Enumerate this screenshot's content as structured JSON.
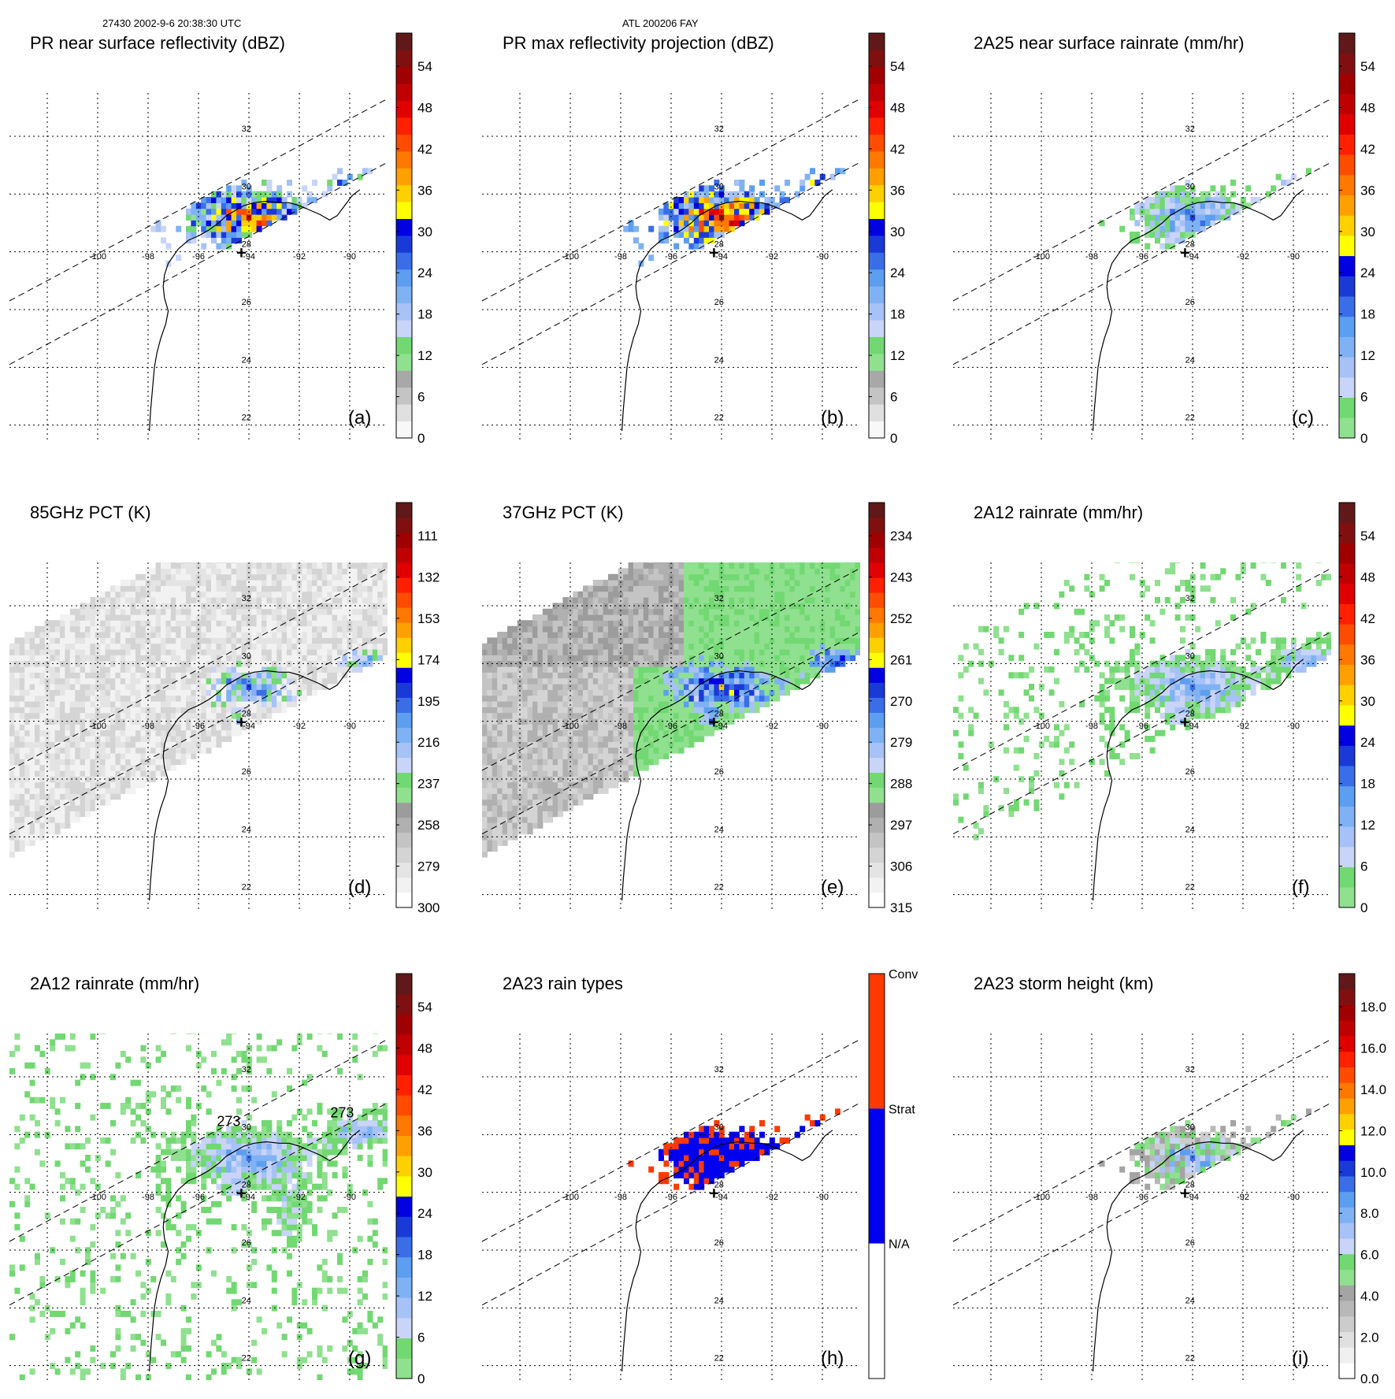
{
  "header": {
    "left": "27430 2002-9-6 20:38:30 UTC",
    "center": "ATL 200206 FAY"
  },
  "chart_data": {
    "type": "heatmap",
    "description_panels": 9,
    "map": {
      "lat_labels": [
        "32",
        "30",
        "28",
        "26",
        "24",
        "22"
      ],
      "lon_labels": [
        "-100",
        "-98",
        "-96",
        "-94",
        "-92",
        "-90"
      ],
      "lat_range": [
        21.5,
        33.5
      ],
      "lon_range": [
        -103.5,
        -88.5
      ],
      "marker": "+"
    },
    "panels": [
      {
        "id": "a",
        "letter": "(a)",
        "title": "PR near surface reflectivity (dBZ)",
        "field": "reflectivity",
        "swath": "pr",
        "colorbar": {
          "kind": "reflectivity",
          "tick_labels": [
            "0",
            "6",
            "12",
            "18",
            "24",
            "30",
            "36",
            "42",
            "48",
            "54"
          ]
        }
      },
      {
        "id": "b",
        "letter": "(b)",
        "title": "PR max reflectivity projection (dBZ)",
        "field": "reflectivity_max",
        "swath": "pr",
        "colorbar": {
          "kind": "reflectivity",
          "tick_labels": [
            "0",
            "6",
            "12",
            "18",
            "24",
            "30",
            "36",
            "42",
            "48",
            "54"
          ]
        }
      },
      {
        "id": "c",
        "letter": "(c)",
        "title": "2A25 near surface rainrate (mm/hr)",
        "field": "rain",
        "swath": "pr",
        "colorbar": {
          "kind": "rain",
          "tick_labels": [
            "0",
            "6",
            "12",
            "18",
            "24",
            "30",
            "36",
            "42",
            "48",
            "54"
          ]
        }
      },
      {
        "id": "d",
        "letter": "(d)",
        "title": "85GHz PCT (K)",
        "field": "pct85",
        "swath": "tmi",
        "colorbar": {
          "kind": "pct",
          "tick_labels": [
            "300",
            "279",
            "258",
            "237",
            "216",
            "195",
            "174",
            "153",
            "132",
            "111"
          ]
        }
      },
      {
        "id": "e",
        "letter": "(e)",
        "title": "37GHz PCT (K)",
        "field": "pct37",
        "swath": "tmi",
        "colorbar": {
          "kind": "pct",
          "tick_labels": [
            "315",
            "306",
            "297",
            "288",
            "279",
            "270",
            "261",
            "252",
            "243",
            "234"
          ]
        }
      },
      {
        "id": "f",
        "letter": "(f)",
        "title": "2A12 rainrate (mm/hr)",
        "field": "rain_wide",
        "swath": "none",
        "colorbar": {
          "kind": "rain",
          "tick_labels": [
            "0",
            "6",
            "12",
            "18",
            "24",
            "30",
            "36",
            "42",
            "48",
            "54"
          ]
        }
      },
      {
        "id": "g",
        "letter": "(g)",
        "title": "2A12 rainrate (mm/hr)",
        "field": "rain_wide",
        "swath": "pr",
        "contour_labels": [
          "273",
          "273"
        ],
        "colorbar": {
          "kind": "rain",
          "tick_labels": [
            "0",
            "6",
            "12",
            "18",
            "24",
            "30",
            "36",
            "42",
            "48",
            "54"
          ]
        }
      },
      {
        "id": "h",
        "letter": "(h)",
        "title": "2A23 rain types",
        "field": "raintype",
        "swath": "pr",
        "colorbar": {
          "kind": "raintype",
          "tick_labels": [
            "N/A",
            "Strat",
            "Conv"
          ]
        }
      },
      {
        "id": "i",
        "letter": "(i)",
        "title": "2A23 storm height (km)",
        "field": "height",
        "swath": "pr",
        "colorbar": {
          "kind": "height",
          "tick_labels": [
            "0.0",
            "2.0",
            "4.0",
            "6.0",
            "8.0",
            "10.0",
            "12.0",
            "14.0",
            "16.0",
            "18.0"
          ]
        }
      }
    ]
  }
}
